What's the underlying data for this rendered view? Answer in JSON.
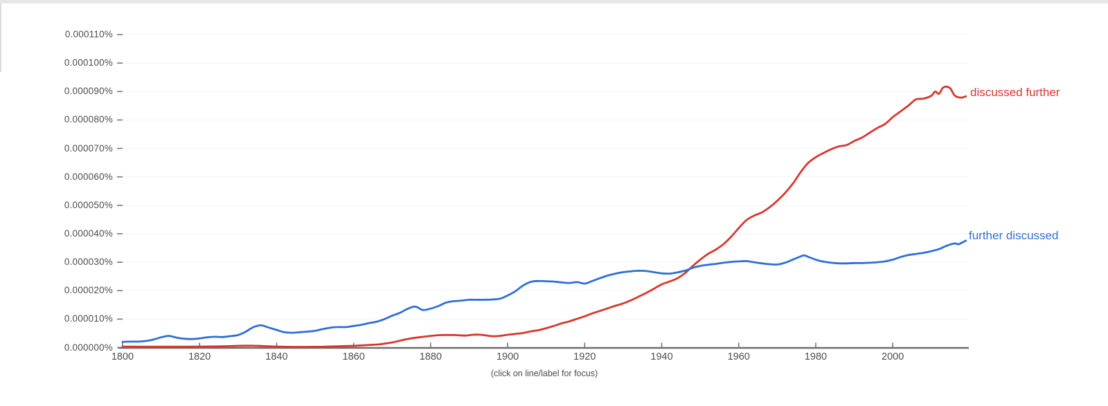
{
  "page": {
    "caption": "(click on line/label for focus)"
  },
  "chart_data": {
    "type": "line",
    "title": "",
    "xlabel": "",
    "ylabel": "",
    "grid": true,
    "legend_position": "end-of-line-labels",
    "x_range": [
      1800,
      2019
    ],
    "x_ticks": [
      1800,
      1820,
      1840,
      1860,
      1880,
      1900,
      1920,
      1940,
      1960,
      1980,
      2000
    ],
    "y_unit_note": "values are in units of 0.000001%",
    "y_ticks": [
      {
        "value": 0,
        "label": "0.000000%"
      },
      {
        "value": 10,
        "label": "0.000010%"
      },
      {
        "value": 20,
        "label": "0.000020%"
      },
      {
        "value": 30,
        "label": "0.000030%"
      },
      {
        "value": 40,
        "label": "0.000040%"
      },
      {
        "value": 50,
        "label": "0.000050%"
      },
      {
        "value": 60,
        "label": "0.000060%"
      },
      {
        "value": 70,
        "label": "0.000070%"
      },
      {
        "value": 80,
        "label": "0.000080%"
      },
      {
        "value": 90,
        "label": "0.000090%"
      },
      {
        "value": 100,
        "label": "0.000100%"
      },
      {
        "value": 110,
        "label": "0.000110%"
      }
    ],
    "ylim": [
      0,
      113
    ],
    "series": [
      {
        "name": "discussed further",
        "color": "#d7372c",
        "points": [
          [
            1800,
            0.35
          ],
          [
            1804,
            0.3
          ],
          [
            1808,
            0.3
          ],
          [
            1812,
            0.3
          ],
          [
            1816,
            0.3
          ],
          [
            1820,
            0.35
          ],
          [
            1824,
            0.4
          ],
          [
            1828,
            0.5
          ],
          [
            1830,
            0.6
          ],
          [
            1833,
            0.65
          ],
          [
            1836,
            0.55
          ],
          [
            1840,
            0.35
          ],
          [
            1844,
            0.25
          ],
          [
            1848,
            0.25
          ],
          [
            1852,
            0.3
          ],
          [
            1856,
            0.45
          ],
          [
            1860,
            0.6
          ],
          [
            1864,
            0.9
          ],
          [
            1867,
            1.2
          ],
          [
            1870,
            1.8
          ],
          [
            1872,
            2.4
          ],
          [
            1874,
            3.0
          ],
          [
            1877,
            3.6
          ],
          [
            1880,
            4.1
          ],
          [
            1883,
            4.4
          ],
          [
            1886,
            4.4
          ],
          [
            1889,
            4.2
          ],
          [
            1891,
            4.5
          ],
          [
            1893,
            4.5
          ],
          [
            1896,
            4.0
          ],
          [
            1898,
            4.1
          ],
          [
            1900,
            4.5
          ],
          [
            1902,
            4.8
          ],
          [
            1904,
            5.1
          ],
          [
            1906,
            5.7
          ],
          [
            1908,
            6.1
          ],
          [
            1910,
            6.8
          ],
          [
            1912,
            7.6
          ],
          [
            1914,
            8.5
          ],
          [
            1916,
            9.2
          ],
          [
            1918,
            10.1
          ],
          [
            1920,
            11.0
          ],
          [
            1922,
            12.0
          ],
          [
            1924,
            12.9
          ],
          [
            1926,
            13.8
          ],
          [
            1928,
            14.7
          ],
          [
            1930,
            15.5
          ],
          [
            1932,
            16.6
          ],
          [
            1934,
            17.9
          ],
          [
            1936,
            19.2
          ],
          [
            1938,
            20.7
          ],
          [
            1940,
            22.2
          ],
          [
            1942,
            23.2
          ],
          [
            1944,
            24.3
          ],
          [
            1946,
            26.1
          ],
          [
            1948,
            28.6
          ],
          [
            1950,
            30.9
          ],
          [
            1952,
            32.9
          ],
          [
            1954,
            34.4
          ],
          [
            1956,
            36.3
          ],
          [
            1958,
            38.9
          ],
          [
            1960,
            42.0
          ],
          [
            1962,
            44.8
          ],
          [
            1964,
            46.4
          ],
          [
            1966,
            47.5
          ],
          [
            1968,
            49.3
          ],
          [
            1970,
            51.6
          ],
          [
            1972,
            54.3
          ],
          [
            1974,
            57.5
          ],
          [
            1976,
            61.5
          ],
          [
            1978,
            64.9
          ],
          [
            1980,
            66.9
          ],
          [
            1982,
            68.4
          ],
          [
            1984,
            69.7
          ],
          [
            1986,
            70.7
          ],
          [
            1988,
            71.2
          ],
          [
            1990,
            72.6
          ],
          [
            1992,
            73.8
          ],
          [
            1994,
            75.5
          ],
          [
            1996,
            77.2
          ],
          [
            1998,
            78.6
          ],
          [
            2000,
            81.0
          ],
          [
            2002,
            83.0
          ],
          [
            2004,
            85.0
          ],
          [
            2006,
            87.2
          ],
          [
            2008,
            87.5
          ],
          [
            2010,
            88.5
          ],
          [
            2011,
            90.0
          ],
          [
            2012,
            89.2
          ],
          [
            2013,
            91.3
          ],
          [
            2014,
            91.7
          ],
          [
            2015,
            91.0
          ],
          [
            2016,
            88.7
          ],
          [
            2017,
            88.0
          ],
          [
            2018,
            87.9
          ],
          [
            2019,
            88.3
          ]
        ]
      },
      {
        "name": "further discussed",
        "color": "#2f6fd6",
        "points": [
          [
            1800,
            2.0
          ],
          [
            1802,
            2.1
          ],
          [
            1804,
            2.1
          ],
          [
            1806,
            2.3
          ],
          [
            1808,
            2.8
          ],
          [
            1810,
            3.6
          ],
          [
            1812,
            4.1
          ],
          [
            1814,
            3.5
          ],
          [
            1816,
            3.1
          ],
          [
            1818,
            3.0
          ],
          [
            1820,
            3.2
          ],
          [
            1822,
            3.6
          ],
          [
            1824,
            3.8
          ],
          [
            1826,
            3.7
          ],
          [
            1828,
            4.0
          ],
          [
            1830,
            4.4
          ],
          [
            1832,
            5.6
          ],
          [
            1834,
            7.2
          ],
          [
            1836,
            7.8
          ],
          [
            1838,
            7.0
          ],
          [
            1840,
            6.2
          ],
          [
            1842,
            5.4
          ],
          [
            1844,
            5.2
          ],
          [
            1846,
            5.4
          ],
          [
            1848,
            5.6
          ],
          [
            1850,
            5.9
          ],
          [
            1852,
            6.5
          ],
          [
            1854,
            7.0
          ],
          [
            1856,
            7.2
          ],
          [
            1858,
            7.2
          ],
          [
            1860,
            7.6
          ],
          [
            1862,
            8.0
          ],
          [
            1864,
            8.6
          ],
          [
            1866,
            9.1
          ],
          [
            1868,
            10.0
          ],
          [
            1870,
            11.2
          ],
          [
            1872,
            12.2
          ],
          [
            1874,
            13.6
          ],
          [
            1876,
            14.4
          ],
          [
            1878,
            13.2
          ],
          [
            1880,
            13.7
          ],
          [
            1882,
            14.6
          ],
          [
            1884,
            15.8
          ],
          [
            1886,
            16.3
          ],
          [
            1888,
            16.5
          ],
          [
            1890,
            16.8
          ],
          [
            1892,
            16.8
          ],
          [
            1894,
            16.8
          ],
          [
            1896,
            16.9
          ],
          [
            1898,
            17.2
          ],
          [
            1900,
            18.3
          ],
          [
            1902,
            19.8
          ],
          [
            1904,
            21.8
          ],
          [
            1906,
            23.1
          ],
          [
            1908,
            23.4
          ],
          [
            1910,
            23.3
          ],
          [
            1912,
            23.2
          ],
          [
            1914,
            22.9
          ],
          [
            1916,
            22.7
          ],
          [
            1918,
            23.0
          ],
          [
            1920,
            22.5
          ],
          [
            1922,
            23.4
          ],
          [
            1924,
            24.4
          ],
          [
            1926,
            25.3
          ],
          [
            1928,
            26.0
          ],
          [
            1930,
            26.5
          ],
          [
            1932,
            26.8
          ],
          [
            1934,
            27.0
          ],
          [
            1936,
            26.9
          ],
          [
            1938,
            26.5
          ],
          [
            1940,
            26.1
          ],
          [
            1942,
            26.0
          ],
          [
            1944,
            26.4
          ],
          [
            1946,
            27.0
          ],
          [
            1948,
            28.0
          ],
          [
            1950,
            28.7
          ],
          [
            1952,
            29.1
          ],
          [
            1954,
            29.4
          ],
          [
            1956,
            29.8
          ],
          [
            1958,
            30.1
          ],
          [
            1960,
            30.3
          ],
          [
            1962,
            30.4
          ],
          [
            1964,
            30.0
          ],
          [
            1966,
            29.6
          ],
          [
            1968,
            29.3
          ],
          [
            1970,
            29.2
          ],
          [
            1972,
            29.8
          ],
          [
            1974,
            30.9
          ],
          [
            1976,
            32.0
          ],
          [
            1977,
            32.4
          ],
          [
            1978,
            31.9
          ],
          [
            1980,
            30.9
          ],
          [
            1982,
            30.2
          ],
          [
            1984,
            29.8
          ],
          [
            1986,
            29.6
          ],
          [
            1988,
            29.6
          ],
          [
            1990,
            29.7
          ],
          [
            1992,
            29.7
          ],
          [
            1994,
            29.8
          ],
          [
            1996,
            30.0
          ],
          [
            1998,
            30.3
          ],
          [
            2000,
            30.9
          ],
          [
            2002,
            31.8
          ],
          [
            2004,
            32.5
          ],
          [
            2006,
            32.9
          ],
          [
            2008,
            33.3
          ],
          [
            2010,
            33.9
          ],
          [
            2012,
            34.6
          ],
          [
            2014,
            35.8
          ],
          [
            2016,
            36.6
          ],
          [
            2017,
            36.3
          ],
          [
            2018,
            36.9
          ],
          [
            2019,
            37.6
          ]
        ]
      }
    ],
    "colors": {
      "gridline": "#f1f1f1",
      "axis": "#6e6e6e",
      "tick": "#757575",
      "tick_label": "#4a4d51"
    }
  }
}
